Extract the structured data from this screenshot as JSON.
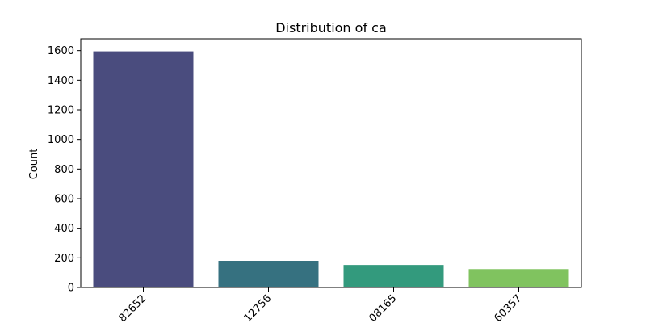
{
  "chart_data": {
    "type": "bar",
    "title": "Distribution of ca",
    "xlabel": "",
    "ylabel": "Count",
    "categories": [
      "82652",
      "12756",
      "08165",
      "60357"
    ],
    "values": [
      1595,
      180,
      152,
      124
    ],
    "colors": [
      "#4a4c7e",
      "#367180",
      "#339a7d",
      "#80c35f"
    ],
    "ylim": [
      0,
      1680
    ],
    "yticks": [
      0,
      200,
      400,
      600,
      800,
      1000,
      1200,
      1400,
      1600
    ],
    "grid": false
  }
}
